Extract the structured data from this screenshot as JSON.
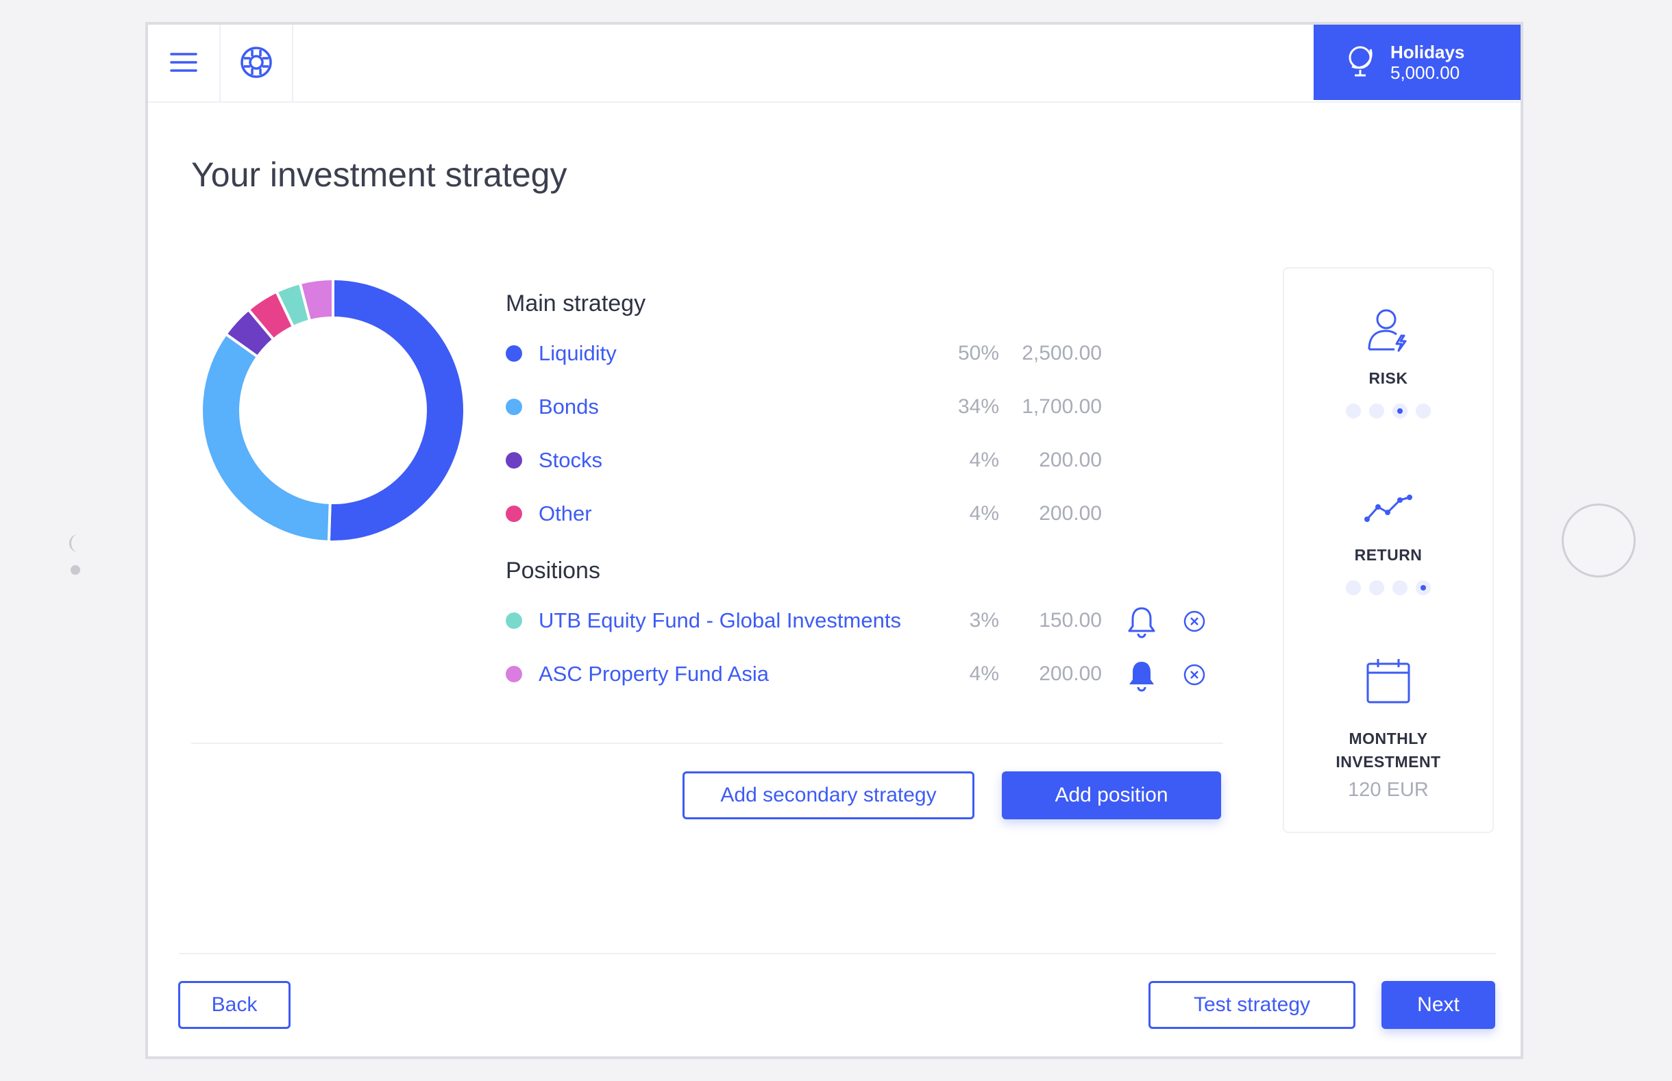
{
  "header": {
    "menu_icon": "hamburger-menu-icon",
    "help_icon": "lifebuoy-icon",
    "goal": {
      "icon": "globe-icon",
      "name": "Holidays",
      "amount": "5,000.00"
    }
  },
  "page": {
    "title": "Your investment strategy"
  },
  "chart_data": {
    "type": "pie",
    "style": "donut",
    "start": "top, clockwise",
    "slices": [
      {
        "label": "Liquidity",
        "value": 50,
        "color": "#3d5bf5"
      },
      {
        "label": "Bonds",
        "value": 34,
        "color": "#59b0fb"
      },
      {
        "label": "Stocks",
        "value": 4,
        "color": "#6b3ec3"
      },
      {
        "label": "Other",
        "value": 4,
        "color": "#e8418b"
      },
      {
        "label": "UTB Equity Fund - Global Investments",
        "value": 3,
        "color": "#7ad9cd"
      },
      {
        "label": "ASC Property Fund Asia",
        "value": 4,
        "color": "#d97de0"
      }
    ]
  },
  "main_strategy": {
    "title": "Main strategy",
    "items": [
      {
        "label": "Liquidity",
        "percent": "50%",
        "amount": "2,500.00",
        "color": "#3d5bf5"
      },
      {
        "label": "Bonds",
        "percent": "34%",
        "amount": "1,700.00",
        "color": "#59b0fb"
      },
      {
        "label": "Stocks",
        "percent": "4%",
        "amount": "200.00",
        "color": "#6b3ec3"
      },
      {
        "label": "Other",
        "percent": "4%",
        "amount": "200.00",
        "color": "#e8418b"
      }
    ]
  },
  "positions": {
    "title": "Positions",
    "items": [
      {
        "label": "UTB Equity Fund - Global Investments",
        "percent": "3%",
        "amount": "150.00",
        "color": "#7ad9cd",
        "alert_icon": "bell-outline-icon",
        "remove_icon": "close-circle-icon"
      },
      {
        "label": "ASC Property Fund Asia",
        "percent": "4%",
        "amount": "200.00",
        "color": "#d97de0",
        "alert_icon": "bell-filled-icon",
        "remove_icon": "close-circle-icon"
      }
    ]
  },
  "actions": {
    "add_secondary": "Add secondary strategy",
    "add_position": "Add position"
  },
  "side_panel": {
    "risk": {
      "icon": "user-risk-icon",
      "label": "RISK",
      "level": 3,
      "max": 4
    },
    "return": {
      "icon": "trend-line-icon",
      "label": "RETURN",
      "level": 4,
      "max": 4
    },
    "monthly": {
      "icon": "calendar-icon",
      "label_line1": "MONTHLY",
      "label_line2": "INVESTMENT",
      "value": "120 EUR"
    }
  },
  "footer": {
    "back": "Back",
    "test_strategy": "Test strategy",
    "next": "Next"
  },
  "colors": {
    "accent": "#3d5bf5",
    "muted": "#a9acb8",
    "text": "#2e3242"
  }
}
